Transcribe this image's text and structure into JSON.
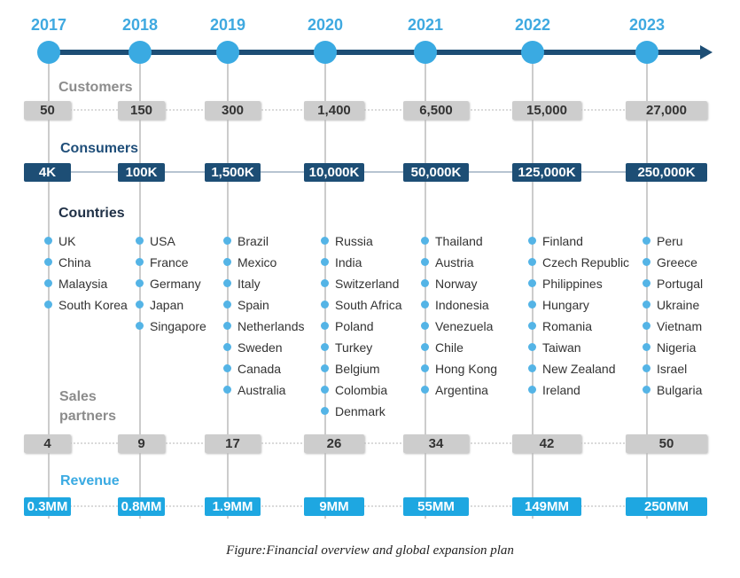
{
  "years": [
    "2017",
    "2018",
    "2019",
    "2020",
    "2021",
    "2022",
    "2023"
  ],
  "labels": {
    "customers": "Customers",
    "consumers": "Consumers",
    "countries": "Countries",
    "sales_line1": "Sales",
    "sales_line2": "partners",
    "revenue": "Revenue"
  },
  "customers": [
    "50",
    "150",
    "300",
    "1,400",
    "6,500",
    "15,000",
    "27,000"
  ],
  "consumers": [
    "4K",
    "100K",
    "1,500K",
    "10,000K",
    "50,000K",
    "125,000K",
    "250,000K"
  ],
  "countries": [
    [
      "UK",
      "China",
      "Malaysia",
      "South Korea"
    ],
    [
      "USA",
      "France",
      "Germany",
      "Japan",
      "Singapore"
    ],
    [
      "Brazil",
      "Mexico",
      "Italy",
      "Spain",
      "Netherlands",
      "Sweden",
      "Canada",
      "Australia"
    ],
    [
      "Russia",
      "India",
      "Switzerland",
      "South Africa",
      "Poland",
      "Turkey",
      "Belgium",
      "Colombia",
      "Denmark"
    ],
    [
      "Thailand",
      "Austria",
      "Norway",
      "Indonesia",
      "Venezuela",
      "Chile",
      "Hong Kong",
      "Argentina"
    ],
    [
      "Finland",
      "Czech Republic",
      "Philippines",
      "Hungary",
      "Romania",
      "Taiwan",
      "New Zealand",
      "Ireland"
    ],
    [
      "Peru",
      "Greece",
      "Portugal",
      "Ukraine",
      "Vietnam",
      "Nigeria",
      "Israel",
      "Bulgaria"
    ]
  ],
  "sales_partners": [
    "4",
    "9",
    "17",
    "26",
    "34",
    "42",
    "50"
  ],
  "revenue": [
    "0.3MM",
    "0.8MM",
    "1.9MM",
    "9MM",
    "55MM",
    "149MM",
    "250MM"
  ],
  "caption": "Figure:Financial overview and global expansion plan",
  "colors": {
    "timeline": "#1d4e75",
    "year_text": "#3fa9e0",
    "node": "#3aaae2",
    "consumer_box": "#1d4e75",
    "revenue_box": "#1ea7e1",
    "grey_box": "#cdcdcd"
  }
}
